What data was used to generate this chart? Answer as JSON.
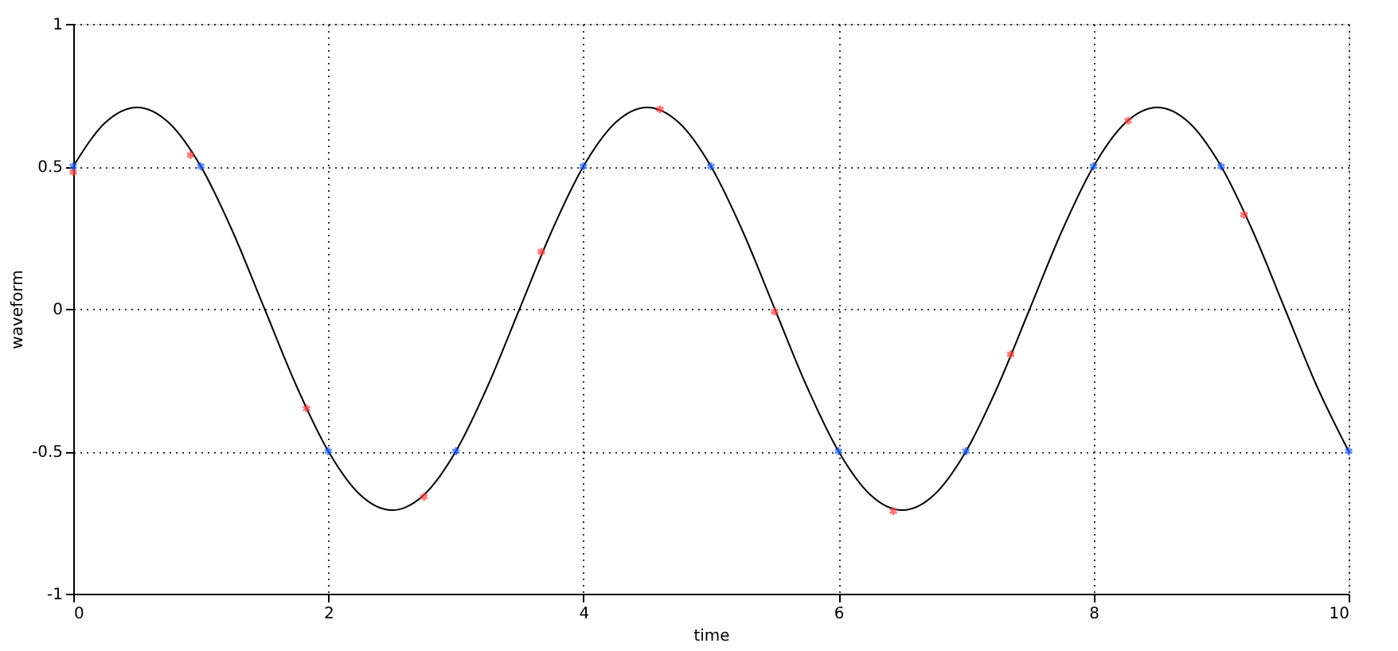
{
  "chart_data": {
    "type": "line",
    "xlabel": "time",
    "ylabel": "waveform",
    "xlim": [
      0,
      10
    ],
    "ylim": [
      -1,
      1
    ],
    "xticks": [
      0,
      2,
      4,
      6,
      8,
      10
    ],
    "yticks": [
      -1,
      -0.5,
      0,
      0.5,
      1
    ],
    "grid": true,
    "legend": false,
    "series": [
      {
        "color": "#000000",
        "marker": "none",
        "line_style": "solid",
        "x": [
          0,
          0.25,
          0.5,
          0.75,
          1,
          1.25,
          1.5,
          1.75,
          2,
          2.25,
          2.5,
          2.75,
          3,
          3.25,
          3.5,
          3.75,
          4,
          4.25,
          4.5,
          4.75,
          5,
          5.25,
          5.5,
          5.75,
          6,
          6.25,
          6.5,
          6.75,
          7,
          7.25,
          7.5,
          7.75,
          8,
          8.25,
          8.5,
          8.75,
          9,
          9.25,
          9.5,
          9.75,
          10
        ],
        "values": [
          0.5,
          0.653,
          0.707,
          0.653,
          0.5,
          0.271,
          0,
          -0.271,
          -0.5,
          -0.653,
          -0.707,
          -0.653,
          -0.5,
          -0.271,
          0,
          0.271,
          0.5,
          0.653,
          0.707,
          0.653,
          0.5,
          0.271,
          0,
          -0.271,
          -0.5,
          -0.653,
          -0.707,
          -0.653,
          -0.5,
          -0.271,
          0,
          0.271,
          0.5,
          0.653,
          0.707,
          0.653,
          0.5,
          0.271,
          0,
          -0.271,
          -0.5
        ]
      },
      {
        "type": "scatter",
        "color": "#ff4040",
        "marker": "cross",
        "x": [
          0,
          0.92,
          1.83,
          2.75,
          3.67,
          4.6,
          5.5,
          6.43,
          7.35,
          8.27,
          9.18
        ],
        "values": [
          0.48,
          0.54,
          -0.35,
          -0.66,
          0.2,
          0.7,
          -0.01,
          -0.71,
          -0.16,
          0.66,
          0.33
        ]
      },
      {
        "type": "scatter",
        "color": "#1f5fff",
        "marker": "cross",
        "x": [
          0,
          1,
          2,
          3,
          4,
          5,
          6,
          7,
          8,
          9,
          10
        ],
        "values": [
          0.5,
          0.5,
          -0.5,
          -0.5,
          0.5,
          0.5,
          -0.5,
          -0.5,
          0.5,
          0.5,
          -0.5
        ]
      }
    ]
  }
}
